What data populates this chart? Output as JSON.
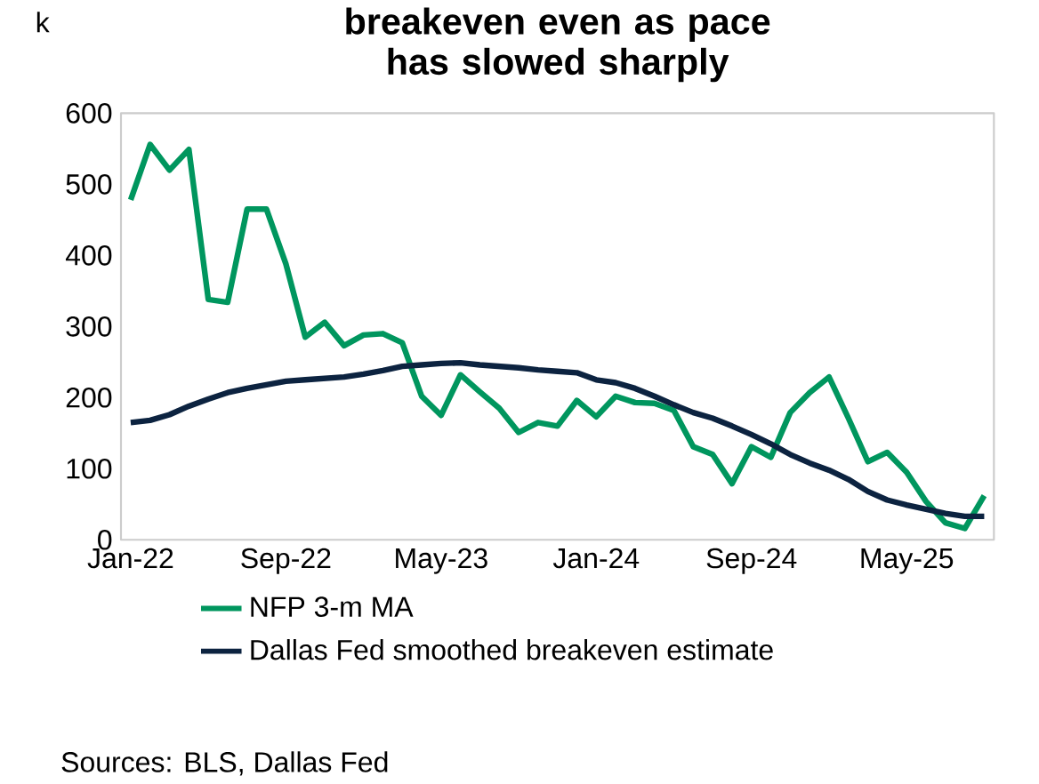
{
  "chart_data": {
    "type": "line",
    "title": "breakeven even as pace has slowed sharply",
    "ylabel": "k",
    "categories": [
      "Jan-22",
      null,
      null,
      null,
      null,
      null,
      null,
      null,
      "Sep-22",
      null,
      null,
      null,
      null,
      null,
      null,
      null,
      "May-23",
      null,
      null,
      null,
      null,
      null,
      null,
      null,
      "Jan-24",
      null,
      null,
      null,
      null,
      null,
      null,
      null,
      "Sep-24",
      null,
      null,
      null,
      null,
      null,
      null,
      null,
      "May-25",
      null,
      null,
      null,
      null
    ],
    "series": [
      {
        "name": "NFP 3-m MA",
        "color": "#00965e",
        "values": [
          478,
          556,
          520,
          549,
          338,
          334,
          465,
          465,
          388,
          285,
          306,
          273,
          288,
          290,
          277,
          202,
          175,
          232,
          208,
          185,
          151,
          165,
          160,
          196,
          173,
          202,
          193,
          192,
          182,
          131,
          120,
          79,
          131,
          116,
          179,
          207,
          229,
          171,
          110,
          123,
          95,
          54,
          24,
          16,
          62
        ]
      },
      {
        "name": "Dallas Fed smoothed breakeven estimate",
        "color": "#0c2340",
        "values": [
          165,
          168,
          176,
          188,
          198,
          207,
          213,
          218,
          223,
          225,
          227,
          229,
          233,
          238,
          244,
          246,
          248,
          249,
          246,
          244,
          242,
          239,
          237,
          235,
          225,
          221,
          213,
          202,
          190,
          179,
          171,
          160,
          148,
          135,
          120,
          108,
          98,
          85,
          68,
          56,
          49,
          43,
          37,
          33,
          33
        ]
      }
    ],
    "ylim": [
      0,
      600
    ],
    "yticks": [
      0,
      100,
      200,
      300,
      400,
      500,
      600
    ],
    "grid": false,
    "legend": "bottom",
    "line_style": "solid",
    "marker": "none",
    "annotations": [
      "Sources: BLS, Dallas Fed"
    ]
  }
}
